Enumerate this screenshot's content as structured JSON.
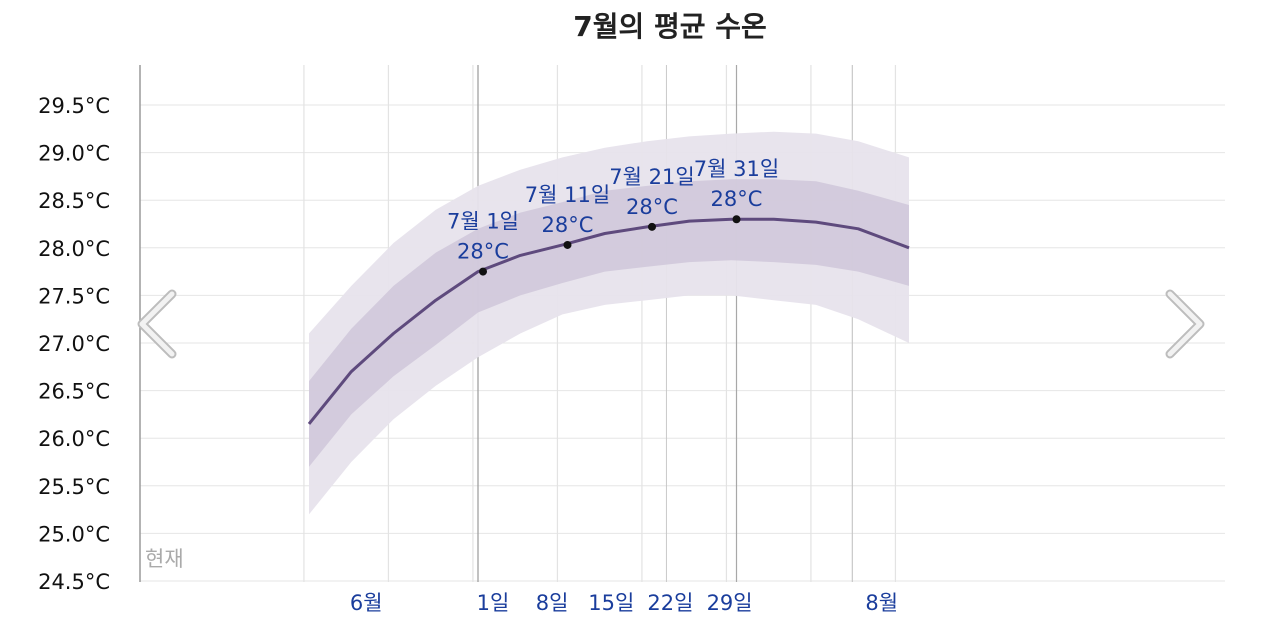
{
  "chart_data": {
    "type": "area",
    "title": "7월의 평균 수온",
    "ylim": [
      24.5,
      29.5
    ],
    "grid": true,
    "y_ticks": [
      "24.5°C",
      "25.0°C",
      "25.5°C",
      "26.0°C",
      "26.5°C",
      "27.0°C",
      "27.5°C",
      "28.0°C",
      "28.5°C",
      "29.0°C",
      "29.5°C"
    ],
    "x_labels": [
      {
        "day": -15,
        "text": "6월"
      },
      {
        "day": 0,
        "text": "1일"
      },
      {
        "day": 7,
        "text": "8일"
      },
      {
        "day": 14,
        "text": "15일"
      },
      {
        "day": 21,
        "text": "22일"
      },
      {
        "day": 28,
        "text": "29일"
      },
      {
        "day": 46,
        "text": "8월"
      }
    ],
    "x_domain": [
      -20,
      51
    ],
    "x_axis_note": "day offsets relative to 7월 1일 (negative = June, ≥31 = August)",
    "now_day": -19,
    "now_label": "현재",
    "series": [
      {
        "kind": "mean",
        "color": "#5e4a7d",
        "points": [
          [
            -20,
            26.15
          ],
          [
            -15,
            26.7
          ],
          [
            -10,
            27.1
          ],
          [
            -5,
            27.45
          ],
          [
            0,
            27.75
          ],
          [
            5,
            27.92
          ],
          [
            10,
            28.03
          ],
          [
            15,
            28.15
          ],
          [
            20,
            28.22
          ],
          [
            25,
            28.28
          ],
          [
            30,
            28.3
          ],
          [
            35,
            28.3
          ],
          [
            40,
            28.27
          ],
          [
            45,
            28.2
          ],
          [
            51,
            28.0
          ]
        ]
      },
      {
        "kind": "band-inner",
        "color": "#cfc7d9",
        "upper": [
          [
            -20,
            26.6
          ],
          [
            -15,
            27.15
          ],
          [
            -10,
            27.6
          ],
          [
            -5,
            27.95
          ],
          [
            0,
            28.2
          ],
          [
            5,
            28.37
          ],
          [
            10,
            28.48
          ],
          [
            15,
            28.6
          ],
          [
            20,
            28.65
          ],
          [
            25,
            28.7
          ],
          [
            30,
            28.72
          ],
          [
            35,
            28.72
          ],
          [
            40,
            28.7
          ],
          [
            45,
            28.6
          ],
          [
            51,
            28.45
          ]
        ],
        "lower": [
          [
            -20,
            25.7
          ],
          [
            -15,
            26.25
          ],
          [
            -10,
            26.65
          ],
          [
            -5,
            26.98
          ],
          [
            0,
            27.32
          ],
          [
            5,
            27.5
          ],
          [
            10,
            27.63
          ],
          [
            15,
            27.75
          ],
          [
            20,
            27.8
          ],
          [
            25,
            27.85
          ],
          [
            30,
            27.87
          ],
          [
            35,
            27.85
          ],
          [
            40,
            27.82
          ],
          [
            45,
            27.75
          ],
          [
            51,
            27.6
          ]
        ]
      },
      {
        "kind": "band-outer",
        "color": "#e7e3ec",
        "upper": [
          [
            -20,
            27.1
          ],
          [
            -15,
            27.6
          ],
          [
            -10,
            28.05
          ],
          [
            -5,
            28.4
          ],
          [
            0,
            28.65
          ],
          [
            5,
            28.82
          ],
          [
            10,
            28.95
          ],
          [
            15,
            29.05
          ],
          [
            20,
            29.12
          ],
          [
            25,
            29.17
          ],
          [
            30,
            29.2
          ],
          [
            35,
            29.22
          ],
          [
            40,
            29.2
          ],
          [
            45,
            29.12
          ],
          [
            51,
            28.95
          ]
        ],
        "lower": [
          [
            -20,
            25.2
          ],
          [
            -15,
            25.75
          ],
          [
            -10,
            26.2
          ],
          [
            -5,
            26.55
          ],
          [
            0,
            26.85
          ],
          [
            5,
            27.1
          ],
          [
            10,
            27.3
          ],
          [
            15,
            27.4
          ],
          [
            20,
            27.45
          ],
          [
            25,
            27.5
          ],
          [
            30,
            27.5
          ],
          [
            35,
            27.45
          ],
          [
            40,
            27.4
          ],
          [
            45,
            27.25
          ],
          [
            51,
            27.0
          ]
        ]
      }
    ],
    "annotations": [
      {
        "day": 0,
        "value": 27.75,
        "date": "7월 1일",
        "temp": "28°C"
      },
      {
        "day": 10,
        "value": 28.03,
        "date": "7월 11일",
        "temp": "28°C"
      },
      {
        "day": 20,
        "value": 28.22,
        "date": "7월 21일",
        "temp": "28°C"
      },
      {
        "day": 30,
        "value": 28.3,
        "date": "7월 31일",
        "temp": "28°C"
      }
    ]
  },
  "nav": {
    "prev_icon": "chevron-left-icon",
    "next_icon": "chevron-right-icon"
  }
}
